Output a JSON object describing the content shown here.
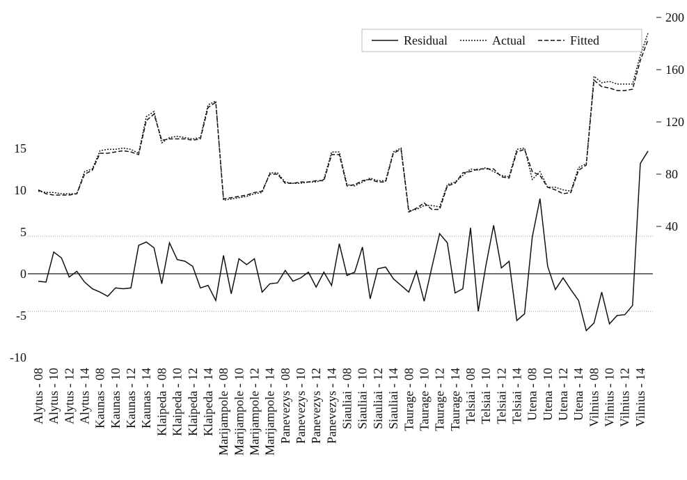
{
  "chart_data": {
    "type": "line",
    "categories": [
      "Alytus - 08",
      null,
      "Alytus - 10",
      null,
      "Alytus - 12",
      null,
      "Alytus - 14",
      null,
      "Kaunas - 08",
      null,
      "Kaunas - 10",
      null,
      "Kaunas - 12",
      null,
      "Kaunas - 14",
      null,
      "Klaipeda - 08",
      null,
      "Klaipeda - 10",
      null,
      "Klaipeda - 12",
      null,
      "Klaipeda - 14",
      null,
      "Marijampole - 08",
      null,
      "Marijampole - 10",
      null,
      "Marijampole - 12",
      null,
      "Marijampole - 14",
      null,
      "Panevezys - 08",
      null,
      "Panevezys - 10",
      null,
      "Panevezys - 12",
      null,
      "Panevezys - 14",
      null,
      "Siauliai - 08",
      null,
      "Siauliai - 10",
      null,
      "Siauliai - 12",
      null,
      "Siauliai - 14",
      null,
      "Taurage - 08",
      null,
      "Taurage - 10",
      null,
      "Taurage - 12",
      null,
      "Taurage - 14",
      null,
      "Telsiai - 08",
      null,
      "Telsiai - 10",
      null,
      "Telsiai - 12",
      null,
      "Telsiai - 14",
      null,
      "Utena - 08",
      null,
      "Utena - 10",
      null,
      "Utena - 12",
      null,
      "Utena - 14",
      null,
      "Vilnius - 08",
      null,
      "Vilnius - 10",
      null,
      "Vilnius - 12",
      null,
      "Vilnius - 14",
      null
    ],
    "series": [
      {
        "name": "Residual",
        "color": "#111111",
        "style": "solid",
        "axis": "y",
        "values": [
          -0.9,
          -1.0,
          2.6,
          1.9,
          -0.4,
          0.3,
          -1.0,
          -1.8,
          -2.2,
          -2.7,
          -1.7,
          -1.8,
          -1.7,
          3.4,
          3.8,
          3.1,
          -1.2,
          3.7,
          1.7,
          1.5,
          0.9,
          -1.7,
          -1.4,
          -3.2,
          2.2,
          -2.4,
          1.8,
          1.1,
          1.8,
          -2.2,
          -1.2,
          -1.1,
          0.4,
          -0.9,
          -0.5,
          0.2,
          -1.6,
          0.2,
          -1.4,
          3.6,
          -0.2,
          0.2,
          3.2,
          -3.0,
          0.6,
          0.8,
          -0.6,
          -1.4,
          -2.2,
          0.3,
          -3.3,
          0.8,
          4.8,
          3.7,
          -2.3,
          -1.8,
          5.5,
          -4.5,
          1.0,
          5.8,
          0.7,
          1.5,
          -5.6,
          -4.8,
          4.4,
          9.0,
          0.9,
          -1.9,
          -0.5,
          -1.9,
          -3.2,
          -6.8,
          -5.9,
          -2.2,
          -6.0,
          -5.0,
          -4.9,
          -3.8,
          13.2,
          14.7
        ]
      },
      {
        "name": "Actual",
        "color": "#111111",
        "style": "dotted",
        "axis": "y2",
        "values": [
          67,
          66,
          66,
          65,
          65,
          65,
          82,
          84,
          98,
          99,
          99,
          100,
          99,
          96,
          124,
          128,
          104,
          108,
          109,
          108,
          107,
          108,
          133,
          136,
          60,
          61,
          62,
          63,
          65,
          66,
          81,
          81,
          74,
          73,
          73,
          74,
          74,
          76,
          97,
          97,
          72,
          71,
          74,
          77,
          75,
          75,
          97,
          100,
          52,
          53,
          56,
          56,
          55,
          72,
          74,
          79,
          84,
          83,
          85,
          82,
          79,
          78,
          99,
          100,
          76,
          82,
          70,
          70,
          68,
          67,
          85,
          88,
          155,
          150,
          151,
          149,
          149,
          149,
          171,
          188
        ]
      },
      {
        "name": "Fitted",
        "color": "#111111",
        "style": "dashed",
        "axis": "y2",
        "values": [
          68,
          65,
          64,
          64,
          64,
          65,
          80,
          83,
          96,
          96,
          97,
          98,
          97,
          95,
          121,
          126,
          106,
          107,
          107,
          107,
          106,
          107,
          131,
          135,
          61,
          62,
          63,
          64,
          66,
          67,
          80,
          80,
          73,
          73,
          74,
          74,
          75,
          75,
          95,
          95,
          71,
          72,
          75,
          76,
          74,
          74,
          96,
          99,
          51,
          54,
          58,
          53,
          53,
          71,
          73,
          81,
          82,
          84,
          84,
          84,
          78,
          77,
          97,
          99,
          82,
          79,
          70,
          68,
          65,
          66,
          83,
          87,
          152,
          147,
          146,
          144,
          144,
          145,
          167,
          183
        ]
      }
    ],
    "ylim": [
      -10.6,
      30.7
    ],
    "yticks": [
      -10,
      -5,
      0,
      5,
      10,
      15
    ],
    "y2lim": [
      -64,
      200
    ],
    "y2ticks": [
      40,
      80,
      120,
      160,
      200
    ],
    "reference_lines": [
      {
        "value": 4.5,
        "style": "dotted"
      },
      {
        "value": 0,
        "style": "solid"
      },
      {
        "value": -4.5,
        "style": "dotted"
      }
    ],
    "legend": "upper right"
  }
}
